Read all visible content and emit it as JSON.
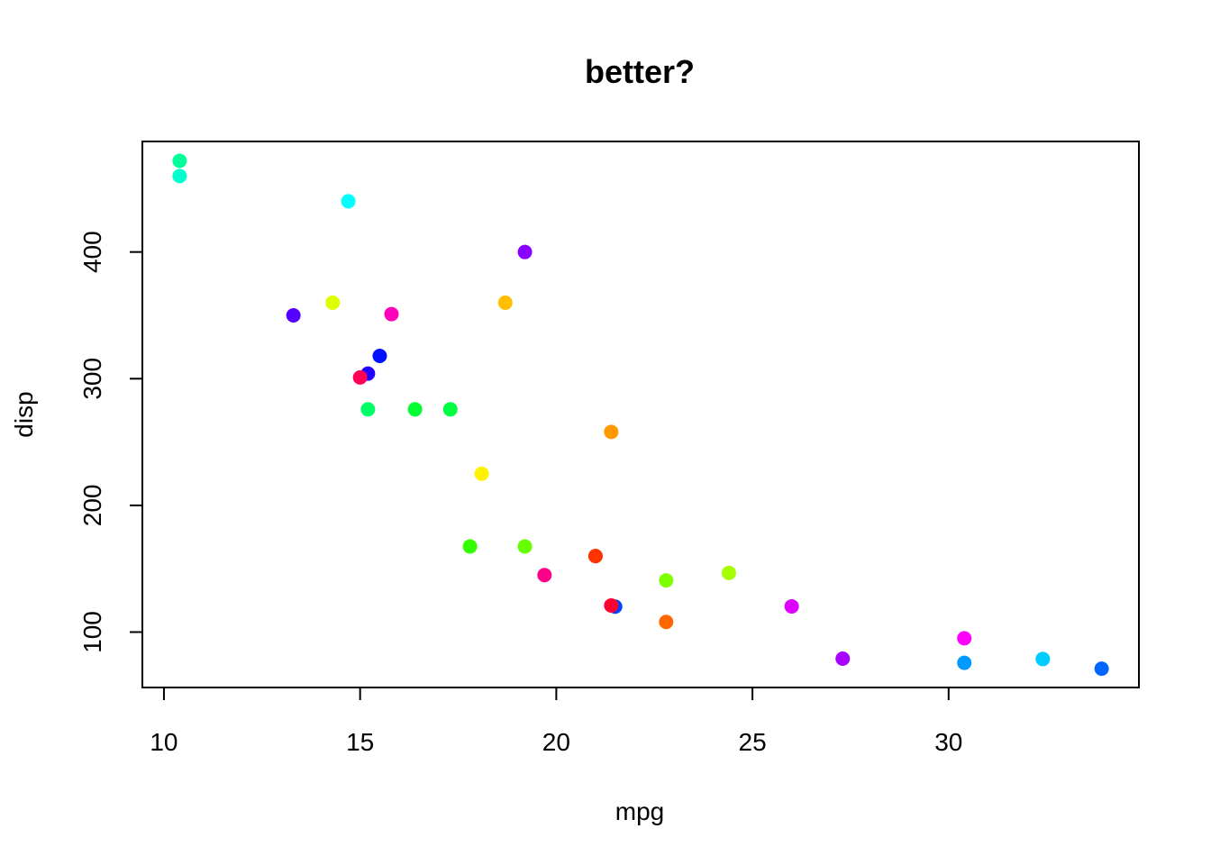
{
  "chart_data": {
    "type": "scatter",
    "title": "better?",
    "xlabel": "mpg",
    "ylabel": "disp",
    "xlim": [
      9.45,
      34.85
    ],
    "ylim": [
      56.25,
      487.25
    ],
    "xticks": [
      10,
      15,
      20,
      25,
      30
    ],
    "yticks": [
      100,
      200,
      300,
      400
    ],
    "grid": false,
    "legend": "none",
    "points": [
      {
        "x": 21.0,
        "y": 160,
        "color": "#FF3300"
      },
      {
        "x": 21.0,
        "y": 160,
        "color": "#FF3300"
      },
      {
        "x": 22.8,
        "y": 108,
        "color": "#FF6600"
      },
      {
        "x": 21.4,
        "y": 258,
        "color": "#FF9900"
      },
      {
        "x": 18.7,
        "y": 360,
        "color": "#FFBF00"
      },
      {
        "x": 18.1,
        "y": 225,
        "color": "#FFF200"
      },
      {
        "x": 14.3,
        "y": 360,
        "color": "#DFFF00"
      },
      {
        "x": 24.4,
        "y": 146.7,
        "color": "#A6FF00"
      },
      {
        "x": 22.8,
        "y": 140.8,
        "color": "#80FF00"
      },
      {
        "x": 19.2,
        "y": 167.6,
        "color": "#66FF00"
      },
      {
        "x": 17.8,
        "y": 167.6,
        "color": "#33FF00"
      },
      {
        "x": 16.4,
        "y": 275.8,
        "color": "#00FF33"
      },
      {
        "x": 17.3,
        "y": 275.8,
        "color": "#00FF40"
      },
      {
        "x": 15.2,
        "y": 275.8,
        "color": "#00FF66"
      },
      {
        "x": 10.4,
        "y": 472,
        "color": "#00FF99"
      },
      {
        "x": 10.4,
        "y": 460,
        "color": "#00FFCC"
      },
      {
        "x": 14.7,
        "y": 440,
        "color": "#00FFFF"
      },
      {
        "x": 32.4,
        "y": 78.7,
        "color": "#00CCFF"
      },
      {
        "x": 30.4,
        "y": 75.7,
        "color": "#0099FF"
      },
      {
        "x": 33.9,
        "y": 71.1,
        "color": "#0066FF"
      },
      {
        "x": 21.5,
        "y": 120.1,
        "color": "#0044FF"
      },
      {
        "x": 15.5,
        "y": 318,
        "color": "#0011FF"
      },
      {
        "x": 15.2,
        "y": 304,
        "color": "#2200FF"
      },
      {
        "x": 13.3,
        "y": 350,
        "color": "#5500FF"
      },
      {
        "x": 19.2,
        "y": 400,
        "color": "#8800FF"
      },
      {
        "x": 27.3,
        "y": 79,
        "color": "#AA00FF"
      },
      {
        "x": 26.0,
        "y": 120.3,
        "color": "#DD00FF"
      },
      {
        "x": 30.4,
        "y": 95.1,
        "color": "#FF00FF"
      },
      {
        "x": 15.8,
        "y": 351,
        "color": "#FF00BB"
      },
      {
        "x": 19.7,
        "y": 145,
        "color": "#FF0088"
      },
      {
        "x": 15.0,
        "y": 301,
        "color": "#FF0055"
      },
      {
        "x": 21.4,
        "y": 121,
        "color": "#FF0033"
      }
    ]
  }
}
